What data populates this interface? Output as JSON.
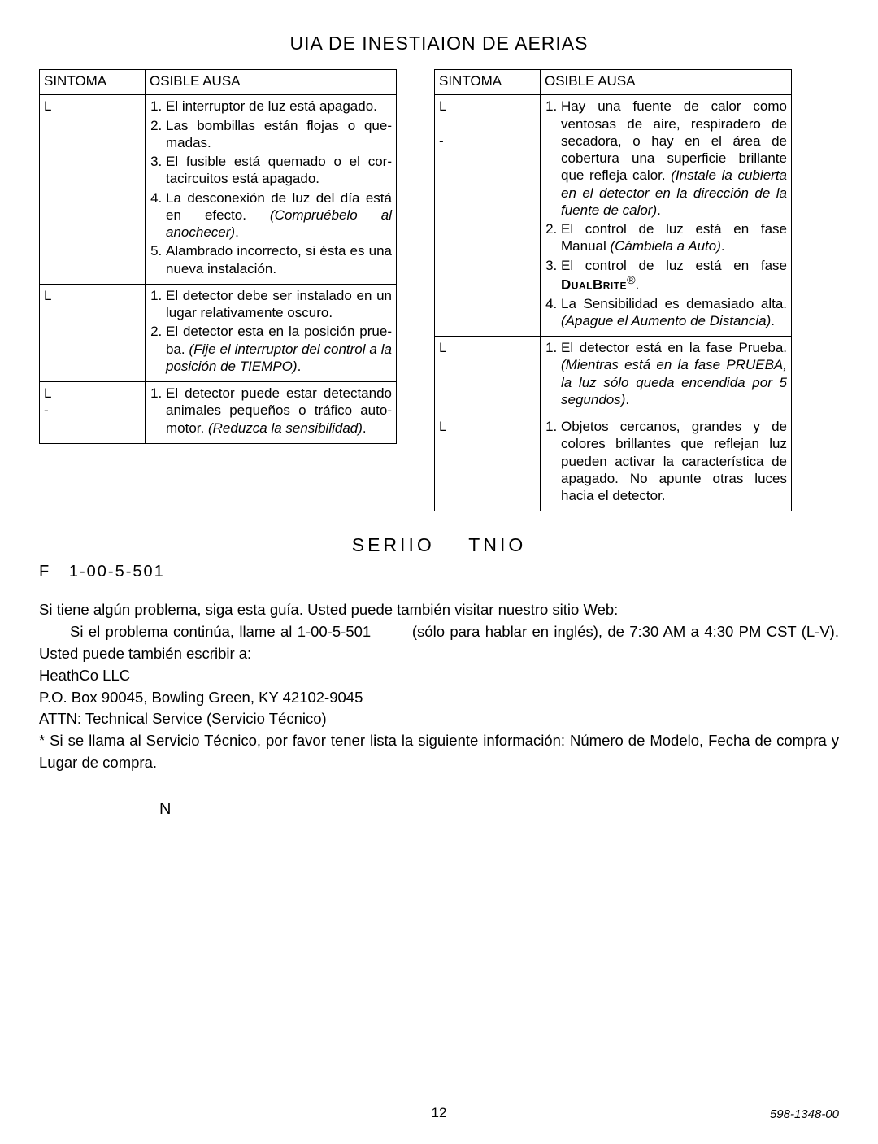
{
  "title": "UIA DE INESTIAION DE AERIAS",
  "headers": {
    "sym": "SINTOMA",
    "cause": "OSIBLE AUSA"
  },
  "left": [
    {
      "sym": "L",
      "items": [
        "El interruptor de luz está apagado.",
        "Las bombillas están flojas o que­madas.",
        "El fusible está quemado o el cor­tacircuitos está apagado.",
        "La desconexión de luz del día está en efecto. <i>(Compruébelo al anochecer)</i>.",
        "Alambrado incorrecto, si ésta es una nueva instalación."
      ]
    },
    {
      "sym": "L",
      "items": [
        "El detector debe ser instalado en un lugar relativamente oscuro.",
        "El detector esta en la posición prue­ba. <i>(Fije el interruptor del control a la posición de TIEMPO)</i>."
      ]
    },
    {
      "sym": "L<br>-",
      "items": [
        "El detector puede estar detectando animales pequeños o tráfico auto­motor. <i>(Reduzca la sensibilidad)</i>."
      ]
    }
  ],
  "right": [
    {
      "sym": "L<br><br>-",
      "items": [
        "Hay una fuente de calor como ventosas de aire, respiradero de secadora, o hay en el área de cobertura una superficie brillante que refleja calor. <i>(Instale la cubierta en el detector en la dirección de la fuente de calor)</i>.",
        "El control de luz está en fase Manual <i>(Cámbiela a Auto)</i>.",
        "El control de luz está en fase <b><span class=\"smcaps\">DualBrite</span></b><sup>®</sup>.",
        "La Sensibilidad es demasiado alta. <i>(Apague el Aumento de Distancia)</i>."
      ]
    },
    {
      "sym": "L",
      "items": [
        "El detector está en la fase Prueba. <i>(Mientras está en la fase PRUEBA, la luz sólo queda encendida por 5 segundos)</i>."
      ]
    },
    {
      "sym": "L",
      "items": [
        "Objetos cercanos, grandes y de colores brillantes que reflejan luz pueden activar la característica de apagado. No apunte otras luces hacia el detector."
      ]
    }
  ],
  "service_title": "SERIIO&nbsp;&nbsp;&nbsp;&nbsp;TNIO",
  "phone": "F&nbsp;&nbsp;&nbsp;1-00-5-501",
  "body1": "Si tiene algún problema, siga esta guía. Usted puede también visitar nuestro sitio Web:",
  "body2": "Si el problema continúa, llame al 1-00-5-501 &nbsp;&nbsp;&nbsp;&nbsp;&nbsp;&nbsp;&nbsp;(sólo para hablar en inglés), de 7:30 AM a 4:30 PM CST (L-V). Usted puede también escribir a:",
  "body3": "HeathCo LLC",
  "body4": "P.O. Box 90045, Bowling Green, KY 42102-9045",
  "body5": "ATTN: Technical Service (Servicio Técnico)",
  "body6": "* Si se llama al Servicio Técnico, por favor tener lista la siguiente información: Número de Modelo, Fecha de compra y Lugar de compra.",
  "n_line": "N",
  "page_num": "12",
  "doc_id": "598-1348-00"
}
